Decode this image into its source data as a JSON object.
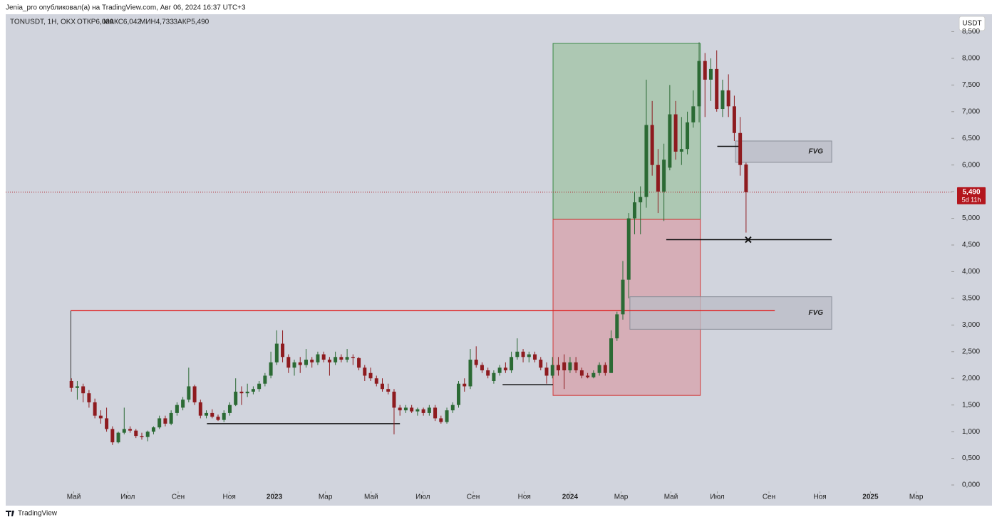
{
  "chart_data": {
    "type": "candlestick",
    "watermark": "Jenia_pro опубликовал(а) на TradingView.com, Авг 06, 2024 16:37 UTC+3",
    "symbol": "TONUSDT, 1Н, OKX",
    "ohlc_labels": [
      "ОТКР6,009",
      "МАКС6,042",
      "МИН4,733",
      "ЗАКР5,490"
    ],
    "currency": "USDT",
    "brand": "TradingView",
    "last_price_label": "5,490",
    "countdown": "5d 11h",
    "up_color": "#2b6a34",
    "down_color": "#8e1b1f",
    "candles": [
      [
        1.95,
        2.0,
        1.75,
        1.82
      ],
      [
        1.82,
        1.95,
        1.6,
        1.85
      ],
      [
        1.85,
        1.9,
        1.55,
        1.72
      ],
      [
        1.72,
        1.78,
        1.45,
        1.55
      ],
      [
        1.55,
        1.62,
        1.25,
        1.3
      ],
      [
        1.3,
        1.4,
        1.15,
        1.25
      ],
      [
        1.25,
        1.45,
        1.0,
        1.05
      ],
      [
        1.05,
        1.1,
        0.75,
        0.8
      ],
      [
        0.8,
        1.0,
        0.78,
        0.98
      ],
      [
        0.98,
        1.45,
        0.95,
        1.05
      ],
      [
        1.05,
        1.1,
        0.98,
        1.02
      ],
      [
        1.02,
        1.05,
        0.88,
        0.92
      ],
      [
        0.92,
        0.98,
        0.85,
        0.9
      ],
      [
        0.9,
        1.02,
        0.82,
        1.0
      ],
      [
        1.0,
        1.1,
        0.95,
        1.08
      ],
      [
        1.08,
        1.3,
        1.05,
        1.25
      ],
      [
        1.25,
        1.3,
        1.1,
        1.15
      ],
      [
        1.15,
        1.4,
        1.12,
        1.35
      ],
      [
        1.35,
        1.55,
        1.3,
        1.5
      ],
      [
        1.45,
        1.65,
        1.4,
        1.6
      ],
      [
        1.6,
        2.2,
        1.55,
        1.85
      ],
      [
        1.85,
        1.88,
        1.5,
        1.55
      ],
      [
        1.55,
        1.6,
        1.25,
        1.3
      ],
      [
        1.3,
        1.4,
        1.25,
        1.35
      ],
      [
        1.35,
        1.42,
        1.25,
        1.28
      ],
      [
        1.28,
        1.32,
        1.2,
        1.22
      ],
      [
        1.22,
        1.4,
        1.18,
        1.35
      ],
      [
        1.35,
        1.55,
        1.3,
        1.5
      ],
      [
        1.5,
        2.0,
        1.48,
        1.75
      ],
      [
        1.75,
        1.85,
        1.5,
        1.72
      ],
      [
        1.72,
        1.9,
        1.65,
        1.75
      ],
      [
        1.75,
        1.85,
        1.7,
        1.8
      ],
      [
        1.8,
        1.95,
        1.75,
        1.9
      ],
      [
        1.9,
        2.1,
        1.85,
        2.05
      ],
      [
        2.05,
        2.5,
        2.0,
        2.3
      ],
      [
        2.3,
        2.9,
        2.25,
        2.65
      ],
      [
        2.65,
        2.9,
        2.3,
        2.4
      ],
      [
        2.4,
        2.45,
        2.1,
        2.2
      ],
      [
        2.2,
        2.35,
        2.05,
        2.3
      ],
      [
        2.3,
        2.4,
        2.1,
        2.25
      ],
      [
        2.25,
        2.55,
        2.2,
        2.35
      ],
      [
        2.35,
        2.4,
        2.2,
        2.3
      ],
      [
        2.3,
        2.5,
        2.25,
        2.45
      ],
      [
        2.45,
        2.5,
        2.3,
        2.35
      ],
      [
        2.35,
        2.4,
        2.05,
        2.3
      ],
      [
        2.3,
        2.5,
        2.25,
        2.4
      ],
      [
        2.4,
        2.45,
        2.3,
        2.35
      ],
      [
        2.35,
        2.55,
        2.3,
        2.4
      ],
      [
        2.4,
        2.45,
        2.25,
        2.38
      ],
      [
        2.38,
        2.4,
        2.15,
        2.2
      ],
      [
        2.2,
        2.25,
        1.95,
        2.05
      ],
      [
        2.1,
        2.2,
        1.95,
        2.0
      ],
      [
        2.0,
        2.05,
        1.85,
        1.9
      ],
      [
        1.9,
        2.0,
        1.75,
        1.8
      ],
      [
        1.8,
        1.9,
        1.7,
        1.75
      ],
      [
        1.75,
        1.8,
        0.95,
        1.45
      ],
      [
        1.45,
        1.5,
        1.3,
        1.4
      ],
      [
        1.4,
        1.5,
        1.35,
        1.45
      ],
      [
        1.45,
        1.5,
        1.35,
        1.38
      ],
      [
        1.38,
        1.45,
        1.3,
        1.42
      ],
      [
        1.42,
        1.45,
        1.3,
        1.35
      ],
      [
        1.35,
        1.5,
        1.3,
        1.45
      ],
      [
        1.45,
        1.5,
        1.2,
        1.25
      ],
      [
        1.25,
        1.3,
        1.15,
        1.18
      ],
      [
        1.18,
        1.45,
        1.15,
        1.4
      ],
      [
        1.4,
        1.55,
        1.35,
        1.5
      ],
      [
        1.5,
        1.95,
        1.45,
        1.9
      ],
      [
        1.9,
        2.0,
        1.75,
        1.85
      ],
      [
        1.85,
        2.55,
        1.8,
        2.35
      ],
      [
        2.35,
        2.6,
        2.2,
        2.25
      ],
      [
        2.25,
        2.3,
        2.1,
        2.15
      ],
      [
        2.15,
        2.2,
        2.0,
        2.05
      ],
      [
        1.95,
        2.15,
        1.9,
        2.1
      ],
      [
        2.1,
        2.25,
        2.05,
        2.2
      ],
      [
        2.2,
        2.3,
        2.1,
        2.15
      ],
      [
        2.15,
        2.5,
        2.1,
        2.4
      ],
      [
        2.4,
        2.75,
        2.35,
        2.5
      ],
      [
        2.5,
        2.55,
        2.3,
        2.4
      ],
      [
        2.4,
        2.5,
        2.3,
        2.45
      ],
      [
        2.45,
        2.5,
        2.3,
        2.35
      ],
      [
        2.35,
        2.4,
        2.15,
        2.2
      ],
      [
        2.2,
        2.3,
        1.9,
        2.05
      ],
      [
        2.05,
        2.4,
        2.0,
        2.25
      ],
      [
        2.25,
        2.4,
        2.05,
        2.15
      ],
      [
        2.3,
        2.45,
        1.8,
        2.15
      ],
      [
        2.15,
        2.4,
        2.1,
        2.3
      ],
      [
        2.3,
        2.4,
        2.1,
        2.15
      ],
      [
        2.15,
        2.2,
        2.0,
        2.05
      ],
      [
        2.05,
        2.1,
        2.0,
        2.02
      ],
      [
        2.02,
        2.15,
        2.0,
        2.1
      ],
      [
        2.1,
        2.3,
        2.05,
        2.25
      ],
      [
        2.25,
        2.3,
        2.05,
        2.1
      ],
      [
        2.1,
        2.9,
        2.1,
        2.75
      ],
      [
        2.75,
        3.25,
        2.7,
        3.2
      ],
      [
        3.2,
        4.2,
        3.1,
        3.85
      ],
      [
        3.85,
        5.1,
        3.5,
        5.0
      ],
      [
        5.0,
        5.5,
        4.7,
        5.3
      ],
      [
        5.3,
        5.6,
        4.7,
        5.4
      ],
      [
        5.4,
        7.6,
        5.2,
        6.75
      ],
      [
        6.75,
        7.2,
        5.8,
        6.0
      ],
      [
        6.0,
        6.3,
        5.1,
        5.5
      ],
      [
        5.5,
        6.4,
        4.95,
        6.1
      ],
      [
        5.95,
        7.5,
        5.9,
        6.95
      ],
      [
        6.95,
        7.2,
        6.1,
        6.25
      ],
      [
        6.25,
        6.9,
        6.0,
        6.3
      ],
      [
        6.3,
        7.0,
        6.2,
        6.8
      ],
      [
        6.8,
        7.4,
        6.7,
        7.1
      ],
      [
        7.1,
        8.3,
        6.8,
        7.95
      ],
      [
        7.95,
        8.1,
        6.9,
        7.6
      ],
      [
        7.6,
        8.0,
        7.2,
        7.8
      ],
      [
        7.8,
        8.15,
        7.0,
        7.05
      ],
      [
        7.05,
        7.6,
        6.9,
        7.4
      ],
      [
        7.4,
        7.7,
        6.9,
        7.1
      ],
      [
        7.1,
        7.3,
        6.45,
        6.6
      ],
      [
        6.6,
        6.9,
        5.8,
        6.0
      ],
      [
        6.009,
        6.042,
        4.733,
        5.49
      ]
    ],
    "xlim": [
      -11.2,
      150.0
    ],
    "xticks": [
      {
        "value": 0.4,
        "label": "Май"
      },
      {
        "value": 9.6,
        "label": "Июл"
      },
      {
        "value": 18.2,
        "label": "Сен"
      },
      {
        "value": 26.9,
        "label": "Ноя"
      },
      {
        "value": 34.6,
        "label": "2023"
      },
      {
        "value": 43.3,
        "label": "Мар"
      },
      {
        "value": 51.1,
        "label": "Май"
      },
      {
        "value": 59.9,
        "label": "Июл"
      },
      {
        "value": 68.5,
        "label": "Сен"
      },
      {
        "value": 77.2,
        "label": "Ноя"
      },
      {
        "value": 85.0,
        "label": "2024"
      },
      {
        "value": 93.7,
        "label": "Мар"
      },
      {
        "value": 102.2,
        "label": "Май"
      },
      {
        "value": 110.1,
        "label": "Июл"
      },
      {
        "value": 118.9,
        "label": "Сен"
      },
      {
        "value": 127.6,
        "label": "Ноя"
      },
      {
        "value": 136.2,
        "label": "2025"
      },
      {
        "value": 144.0,
        "label": "Мар"
      }
    ],
    "ylim": [
      -0.12,
      8.8
    ],
    "yticks": [
      {
        "value": 0,
        "label": "0,000"
      },
      {
        "value": 0.5,
        "label": "0,500"
      },
      {
        "value": 1,
        "label": "1,000"
      },
      {
        "value": 1.5,
        "label": "1,500"
      },
      {
        "value": 2,
        "label": "2,000"
      },
      {
        "value": 2.5,
        "label": "2,500"
      },
      {
        "value": 3,
        "label": "3,000"
      },
      {
        "value": 3.5,
        "label": "3,500"
      },
      {
        "value": 4,
        "label": "4,000"
      },
      {
        "value": 4.5,
        "label": "4,500"
      },
      {
        "value": 5,
        "label": "5,000"
      },
      {
        "value": 5.5,
        "label": "5,500"
      },
      {
        "value": 6,
        "label": "6,000"
      },
      {
        "value": 6.5,
        "label": "6,500"
      },
      {
        "value": 7,
        "label": "7,000"
      },
      {
        "value": 7.5,
        "label": "7,500"
      },
      {
        "value": 8,
        "label": "8,000"
      },
      {
        "value": 8.5,
        "label": "8,500"
      }
    ],
    "grid": false,
    "position_profit": {
      "x": [
        82.1,
        107.2
      ],
      "y": [
        4.98,
        8.28
      ],
      "color": "#a9c6ae"
    },
    "position_stop": {
      "x": [
        82.1,
        107.2
      ],
      "y": [
        1.68,
        4.98
      ],
      "color": "#d6aab3"
    },
    "red_level": {
      "x": [
        -0.1,
        119.9
      ],
      "y": 3.27,
      "color": "#e02020"
    },
    "fvg": [
      {
        "label": "FVG",
        "x": [
          113.2,
          129.6
        ],
        "y": [
          6.05,
          6.45
        ]
      },
      {
        "label": "FVG",
        "x": [
          95.2,
          129.6
        ],
        "y": [
          2.92,
          3.53
        ]
      }
    ],
    "levels": [
      {
        "x": [
          23.1,
          56.0
        ],
        "y": 1.15
      },
      {
        "x": [
          73.5,
          82.1
        ],
        "y": 1.88
      },
      {
        "x": [
          101.4,
          129.6
        ],
        "y": 4.6
      },
      {
        "x": [
          110.1,
          113.8
        ],
        "y": 6.35
      }
    ]
  }
}
